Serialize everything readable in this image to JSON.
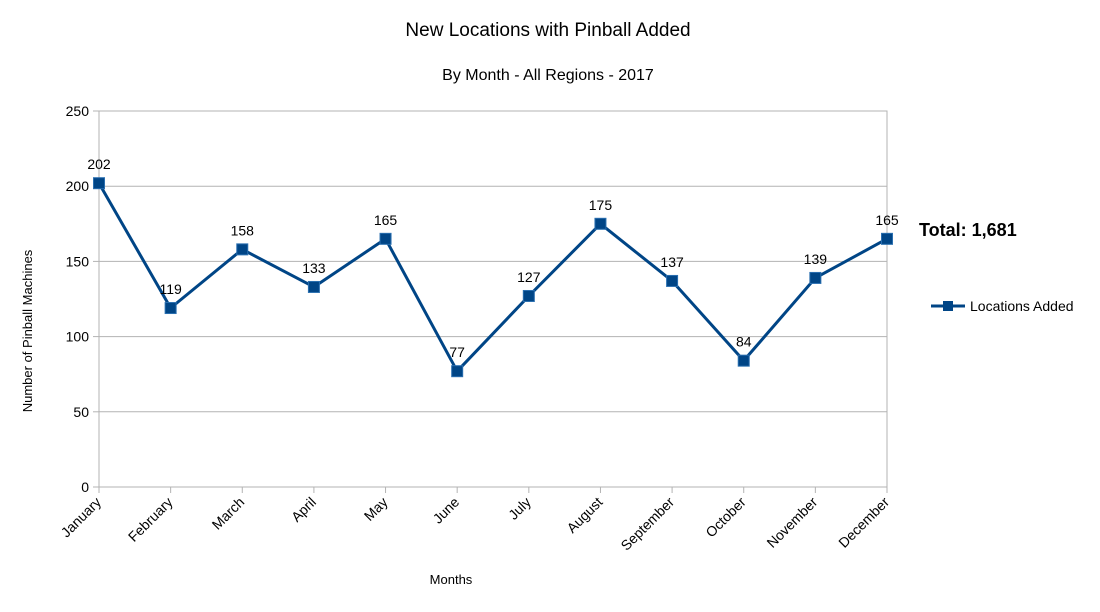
{
  "chart_data": {
    "type": "line",
    "title": "New Locations with Pinball Added",
    "subtitle": "By Month - All Regions - 2017",
    "xlabel": "Months",
    "ylabel": "Number of Pinball Machines",
    "categories": [
      "January",
      "February",
      "March",
      "April",
      "May",
      "June",
      "July",
      "August",
      "September",
      "October",
      "November",
      "December"
    ],
    "series": [
      {
        "name": "Locations Added",
        "values": [
          202,
          119,
          158,
          133,
          165,
          77,
          127,
          175,
          137,
          84,
          139,
          165
        ],
        "color": "#004586"
      }
    ],
    "ylim": [
      0,
      250
    ],
    "yticks": [
      0,
      50,
      100,
      150,
      200,
      250
    ],
    "grid": true,
    "legend": "right",
    "annotation": "Total: 1,681"
  }
}
